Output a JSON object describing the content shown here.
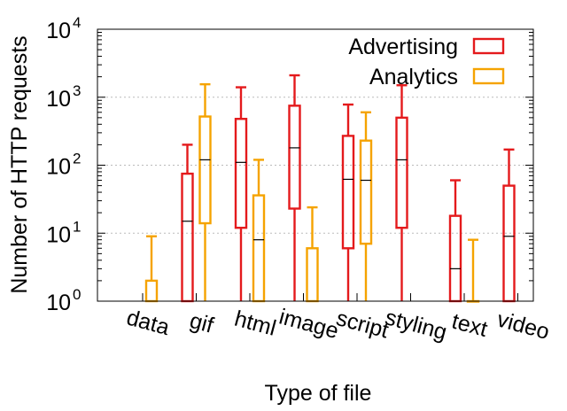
{
  "chart_data": {
    "type": "boxplot",
    "ylabel": "Number of HTTP requests",
    "xlabel": "Type of file",
    "yscale": "log",
    "ylim": [
      1,
      10000
    ],
    "grid": true,
    "legend_position": "top-right",
    "y_ticks": [
      {
        "value": 1,
        "base": "10",
        "exp": "0"
      },
      {
        "value": 10,
        "base": "10",
        "exp": "1"
      },
      {
        "value": 100,
        "base": "10",
        "exp": "2"
      },
      {
        "value": 1000,
        "base": "10",
        "exp": "3"
      },
      {
        "value": 10000,
        "base": "10",
        "exp": "4"
      }
    ],
    "categories": [
      "data",
      "gif",
      "html",
      "image",
      "script",
      "styling",
      "text",
      "video"
    ],
    "series": [
      {
        "name": "Advertising",
        "color": "#e41a1c",
        "boxes": [
          null,
          {
            "whisker_low": 1,
            "q1": 1,
            "median": 15,
            "q3": 75,
            "whisker_high": 200
          },
          {
            "whisker_low": 1,
            "q1": 12,
            "median": 110,
            "q3": 480,
            "whisker_high": 1400
          },
          {
            "whisker_low": 1,
            "q1": 23,
            "median": 180,
            "q3": 750,
            "whisker_high": 2100
          },
          {
            "whisker_low": 1,
            "q1": 6,
            "median": 62,
            "q3": 270,
            "whisker_high": 780
          },
          {
            "whisker_low": 1,
            "q1": 12,
            "median": 120,
            "q3": 500,
            "whisker_high": 1500
          },
          {
            "whisker_low": 1,
            "q1": 1,
            "median": 3,
            "q3": 18,
            "whisker_high": 60
          },
          {
            "whisker_low": 1,
            "q1": 1,
            "median": 9,
            "q3": 50,
            "whisker_high": 170
          }
        ]
      },
      {
        "name": "Analytics",
        "color": "#f5a300",
        "boxes": [
          {
            "whisker_low": 1,
            "q1": 1,
            "median": 1,
            "q3": 2,
            "whisker_high": 9
          },
          {
            "whisker_low": 1,
            "q1": 14,
            "median": 120,
            "q3": 520,
            "whisker_high": 1550
          },
          {
            "whisker_low": 1,
            "q1": 1,
            "median": 8,
            "q3": 36,
            "whisker_high": 120
          },
          {
            "whisker_low": 1,
            "q1": 1,
            "median": 1,
            "q3": 6,
            "whisker_high": 24
          },
          {
            "whisker_low": 1,
            "q1": 7,
            "median": 60,
            "q3": 230,
            "whisker_high": 600
          },
          null,
          {
            "whisker_low": 1,
            "q1": 1,
            "median": 1,
            "q3": 1,
            "whisker_high": 8
          },
          null
        ]
      }
    ]
  }
}
